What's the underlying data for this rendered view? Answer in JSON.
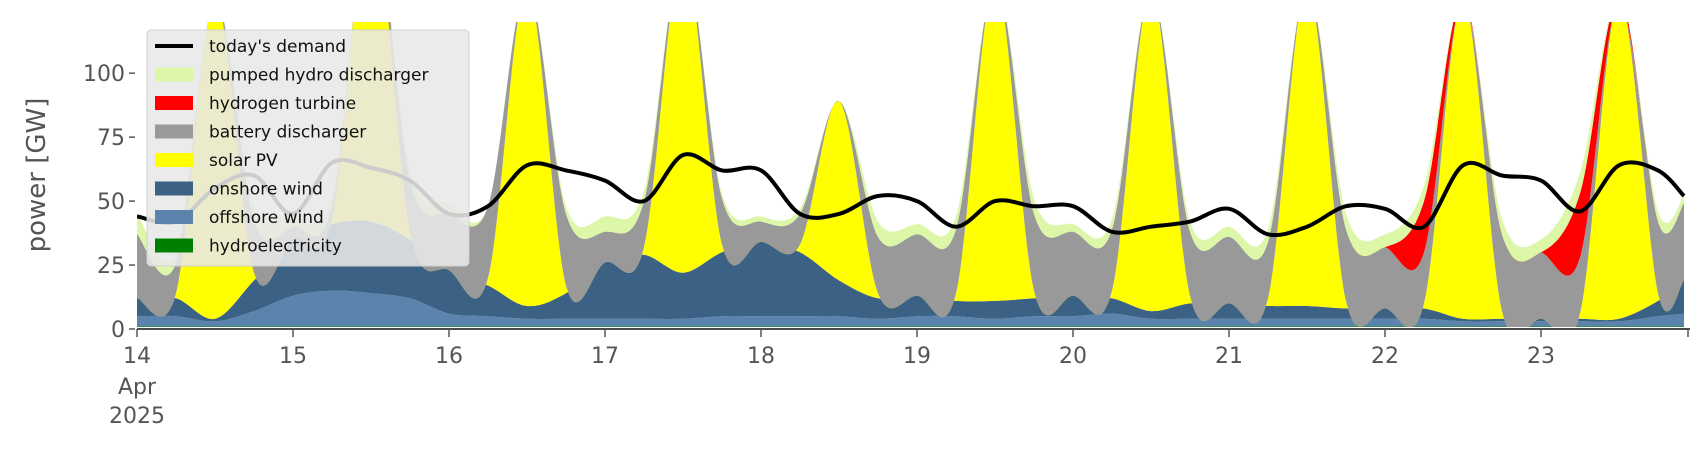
{
  "chart_data": {
    "type": "area",
    "title": "",
    "xlabel": "",
    "ylabel": "power [GW]",
    "ylim": [
      0,
      120
    ],
    "xlim": [
      "2025-04-14T00:00",
      "2025-04-23T22:00"
    ],
    "yticks": [
      {
        "value": 0,
        "label": "0"
      },
      {
        "value": 25,
        "label": "25"
      },
      {
        "value": 50,
        "label": "50"
      },
      {
        "value": 75,
        "label": "75"
      },
      {
        "value": 100,
        "label": "100"
      }
    ],
    "xticks": [
      {
        "date": "2025-04-14",
        "label": "14",
        "sub1": "Apr",
        "sub2": "2025"
      },
      {
        "date": "2025-04-15",
        "label": "15"
      },
      {
        "date": "2025-04-16",
        "label": "16"
      },
      {
        "date": "2025-04-17",
        "label": "17"
      },
      {
        "date": "2025-04-18",
        "label": "18"
      },
      {
        "date": "2025-04-19",
        "label": "19"
      },
      {
        "date": "2025-04-20",
        "label": "20"
      },
      {
        "date": "2025-04-21",
        "label": "21"
      },
      {
        "date": "2025-04-22",
        "label": "22"
      },
      {
        "date": "2025-04-23",
        "label": "23"
      }
    ],
    "grid": false,
    "legend_position": "top-left",
    "x": [
      "2025-04-14T00:00",
      "2025-04-14T06:00",
      "2025-04-14T12:00",
      "2025-04-14T18:00",
      "2025-04-15T00:00",
      "2025-04-15T06:00",
      "2025-04-15T12:00",
      "2025-04-15T18:00",
      "2025-04-16T00:00",
      "2025-04-16T06:00",
      "2025-04-16T12:00",
      "2025-04-16T18:00",
      "2025-04-17T00:00",
      "2025-04-17T06:00",
      "2025-04-17T12:00",
      "2025-04-17T18:00",
      "2025-04-18T00:00",
      "2025-04-18T06:00",
      "2025-04-18T12:00",
      "2025-04-18T18:00",
      "2025-04-19T00:00",
      "2025-04-19T06:00",
      "2025-04-19T12:00",
      "2025-04-19T18:00",
      "2025-04-20T00:00",
      "2025-04-20T06:00",
      "2025-04-20T12:00",
      "2025-04-20T18:00",
      "2025-04-21T00:00",
      "2025-04-21T06:00",
      "2025-04-21T12:00",
      "2025-04-21T18:00",
      "2025-04-22T00:00",
      "2025-04-22T06:00",
      "2025-04-22T12:00",
      "2025-04-22T18:00",
      "2025-04-23T00:00",
      "2025-04-23T06:00",
      "2025-04-23T12:00",
      "2025-04-23T18:00",
      "2025-04-23T22:00"
    ],
    "series": [
      {
        "name": "hydroelectricity",
        "color": "#008000",
        "values": [
          1,
          1,
          1,
          1,
          1,
          1,
          1,
          1,
          1,
          1,
          1,
          1,
          1,
          1,
          1,
          1,
          1,
          1,
          1,
          1,
          1,
          1,
          1,
          1,
          1,
          1,
          1,
          1,
          1,
          1,
          1,
          1,
          1,
          1,
          1,
          1,
          1,
          1,
          1,
          1,
          1
        ]
      },
      {
        "name": "offshore wind",
        "color": "#5b84ac",
        "values": [
          4,
          4,
          2,
          6,
          12,
          14,
          13,
          11,
          5,
          4,
          3,
          3,
          3,
          3,
          3,
          4,
          4,
          4,
          4,
          3,
          4,
          4,
          3,
          4,
          4,
          5,
          3,
          3,
          3,
          3,
          3,
          3,
          3,
          3,
          2,
          2,
          2,
          2,
          2,
          4,
          5
        ]
      },
      {
        "name": "onshore wind",
        "color": "#3b6185",
        "values": [
          7,
          7,
          1,
          12,
          22,
          26,
          28,
          23,
          17,
          12,
          5,
          10,
          22,
          25,
          18,
          25,
          29,
          25,
          14,
          8,
          8,
          6,
          7,
          7,
          8,
          6,
          3,
          6,
          6,
          5,
          5,
          4,
          4,
          4,
          1,
          1,
          1,
          1,
          1,
          6,
          13
        ]
      },
      {
        "name": "solar PV",
        "color": "#ffff00",
        "values": [
          0,
          2,
          125,
          3,
          0,
          2,
          125,
          3,
          0,
          3,
          125,
          3,
          0,
          3,
          125,
          3,
          0,
          3,
          70,
          2,
          0,
          3,
          125,
          3,
          0,
          3,
          125,
          3,
          0,
          3,
          125,
          3,
          0,
          2,
          125,
          3,
          0,
          2,
          125,
          3,
          0
        ]
      },
      {
        "name": "battery discharger",
        "color": "#999999",
        "values": [
          25,
          12,
          0,
          20,
          5,
          5,
          0,
          20,
          22,
          28,
          0,
          28,
          12,
          18,
          0,
          18,
          8,
          12,
          0,
          22,
          24,
          25,
          0,
          30,
          25,
          24,
          0,
          25,
          26,
          22,
          0,
          28,
          24,
          20,
          0,
          30,
          26,
          22,
          0,
          28,
          30
        ]
      },
      {
        "name": "hydrogen turbine",
        "color": "#ff0000",
        "values": [
          0,
          0,
          0,
          0,
          0,
          0,
          0,
          0,
          0,
          0,
          0,
          0,
          0,
          0,
          0,
          0,
          0,
          0,
          0,
          0,
          0,
          0,
          0,
          0,
          0,
          0,
          0,
          0,
          0,
          0,
          0,
          0,
          0,
          20,
          0,
          0,
          0,
          25,
          0,
          0,
          0
        ]
      },
      {
        "name": "pumped hydro discharger",
        "color": "#ddf7a8",
        "values": [
          8,
          4,
          0,
          6,
          6,
          4,
          0,
          4,
          4,
          0,
          0,
          3,
          6,
          4,
          0,
          2,
          2,
          2,
          0,
          6,
          4,
          5,
          0,
          6,
          3,
          4,
          0,
          4,
          4,
          5,
          0,
          6,
          5,
          6,
          0,
          6,
          5,
          8,
          0,
          4,
          3
        ]
      }
    ],
    "demand": {
      "name": "today's demand",
      "color": "#000000",
      "values": [
        44,
        42,
        55,
        60,
        45,
        65,
        63,
        58,
        45,
        48,
        64,
        62,
        58,
        50,
        68,
        62,
        62,
        45,
        45,
        52,
        50,
        40,
        50,
        48,
        48,
        38,
        40,
        42,
        47,
        37,
        40,
        48,
        47,
        40,
        64,
        60,
        58,
        46,
        64,
        62,
        52
      ]
    },
    "legend_order": [
      "today's demand",
      "pumped hydro discharger",
      "hydrogen turbine",
      "battery discharger",
      "solar PV",
      "onshore wind",
      "offshore wind",
      "hydroelectricity"
    ]
  }
}
